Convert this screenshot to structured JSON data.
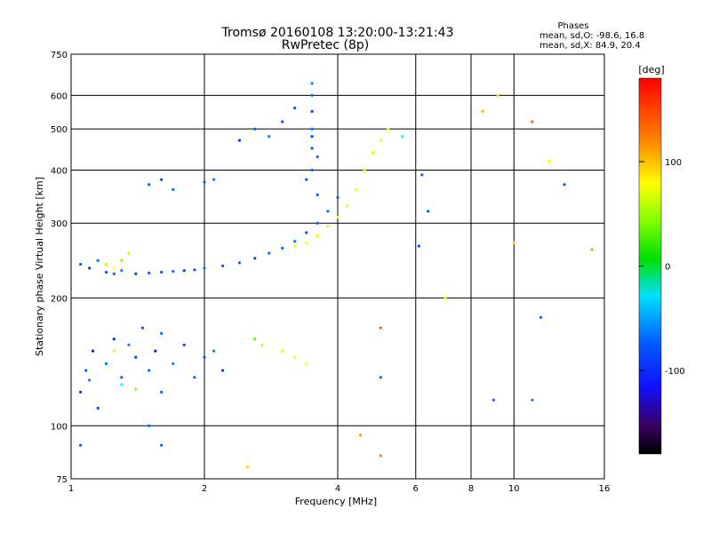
{
  "chart_data": {
    "type": "scatter",
    "title": "Tromsø 20160108 13:20:00-13:21:43",
    "subtitle": "RwPretec (8p)",
    "xlabel": "Frequency [MHz]",
    "ylabel": "Stationary phase Virtual Height [km]",
    "x_scale": "log",
    "y_scale": "log",
    "xlim": [
      1,
      16
    ],
    "ylim": [
      75,
      750
    ],
    "x_ticks": [
      1,
      2,
      4,
      6,
      8,
      10,
      16
    ],
    "x_tick_labels": [
      "1",
      "2",
      "4",
      "6",
      "8",
      "10",
      "16"
    ],
    "y_ticks": [
      75,
      100,
      200,
      300,
      400,
      500,
      600,
      750
    ],
    "y_tick_labels": [
      "75",
      "100",
      "200",
      "300",
      "400",
      "500",
      "600",
      "750"
    ],
    "grid": true,
    "stats": {
      "heading": "Phases",
      "line_o": "mean, sd,O: -98.6, 16.8",
      "line_x": "mean, sd,X:  84.9, 20.4"
    },
    "colorbar": {
      "label": "[deg]",
      "range": [
        -180,
        180
      ],
      "ticks": [
        100,
        0,
        -100
      ],
      "tick_labels": [
        "100",
        "0",
        "-100"
      ]
    },
    "series": [
      {
        "values_desc": "",
        "points": [
          [
            1.05,
            120,
            -120
          ],
          [
            1.08,
            135,
            -110
          ],
          [
            1.12,
            150,
            -130
          ],
          [
            1.15,
            110,
            -115
          ],
          [
            1.2,
            140,
            -105
          ],
          [
            1.25,
            160,
            -125
          ],
          [
            1.3,
            130,
            -110
          ],
          [
            1.35,
            155,
            -100
          ],
          [
            1.4,
            145,
            -120
          ],
          [
            1.45,
            170,
            -115
          ],
          [
            1.5,
            135,
            -105
          ],
          [
            1.55,
            150,
            -130
          ],
          [
            1.6,
            165,
            -110
          ],
          [
            1.7,
            140,
            -100
          ],
          [
            1.8,
            155,
            -120
          ],
          [
            1.9,
            130,
            -115
          ],
          [
            2.0,
            145,
            -110
          ],
          [
            2.1,
            150,
            -100
          ],
          [
            2.2,
            135,
            -120
          ],
          [
            1.1,
            128,
            -95
          ],
          [
            1.3,
            125,
            -60
          ],
          [
            1.4,
            122,
            60
          ],
          [
            1.25,
            150,
            90
          ],
          [
            1.6,
            120,
            -110
          ],
          [
            1.05,
            240,
            -110
          ],
          [
            1.1,
            235,
            -120
          ],
          [
            1.15,
            245,
            -105
          ],
          [
            1.2,
            230,
            -115
          ],
          [
            1.25,
            228,
            -110
          ],
          [
            1.3,
            232,
            -100
          ],
          [
            1.4,
            228,
            -120
          ],
          [
            1.5,
            229,
            -115
          ],
          [
            1.6,
            230,
            -110
          ],
          [
            1.7,
            231,
            -105
          ],
          [
            1.8,
            232,
            -120
          ],
          [
            1.9,
            233,
            -110
          ],
          [
            2.0,
            235,
            -100
          ],
          [
            2.2,
            238,
            -115
          ],
          [
            2.4,
            242,
            -110
          ],
          [
            2.6,
            248,
            -120
          ],
          [
            2.8,
            255,
            -105
          ],
          [
            3.0,
            262,
            -110
          ],
          [
            3.2,
            272,
            -100
          ],
          [
            3.4,
            285,
            -115
          ],
          [
            3.6,
            300,
            -110
          ],
          [
            3.8,
            320,
            -105
          ],
          [
            4.0,
            345,
            -110
          ],
          [
            1.2,
            240,
            80
          ],
          [
            1.3,
            245,
            60
          ],
          [
            1.35,
            255,
            90
          ],
          [
            1.25,
            235,
            100
          ],
          [
            3.2,
            265,
            95
          ],
          [
            3.4,
            270,
            100
          ],
          [
            3.6,
            280,
            90
          ],
          [
            3.8,
            295,
            85
          ],
          [
            4.0,
            310,
            95
          ],
          [
            4.2,
            330,
            90
          ],
          [
            4.4,
            360,
            100
          ],
          [
            4.6,
            400,
            85
          ],
          [
            4.8,
            440,
            90
          ],
          [
            5.0,
            470,
            100
          ],
          [
            5.2,
            500,
            95
          ],
          [
            3.5,
            400,
            -110
          ],
          [
            3.5,
            450,
            -115
          ],
          [
            3.5,
            500,
            -105
          ],
          [
            3.5,
            550,
            -120
          ],
          [
            3.5,
            600,
            -110
          ],
          [
            3.5,
            640,
            -100
          ],
          [
            3.6,
            350,
            -110
          ],
          [
            3.4,
            380,
            -115
          ],
          [
            3.6,
            430,
            -105
          ],
          [
            3.5,
            480,
            -120
          ],
          [
            2.6,
            500,
            -110
          ],
          [
            2.8,
            480,
            -100
          ],
          [
            3.0,
            520,
            -115
          ],
          [
            2.4,
            470,
            -120
          ],
          [
            3.2,
            560,
            -110
          ],
          [
            1.5,
            370,
            -110
          ],
          [
            1.6,
            380,
            -115
          ],
          [
            1.7,
            360,
            -105
          ],
          [
            2.0,
            375,
            -110
          ],
          [
            2.1,
            380,
            -100
          ],
          [
            2.7,
            155,
            80
          ],
          [
            3.0,
            150,
            90
          ],
          [
            3.2,
            145,
            95
          ],
          [
            3.4,
            140,
            100
          ],
          [
            2.6,
            160,
            40
          ],
          [
            5.6,
            480,
            -60
          ],
          [
            6.4,
            320,
            -110
          ],
          [
            7.0,
            200,
            95
          ],
          [
            8.5,
            550,
            120
          ],
          [
            9.2,
            600,
            110
          ],
          [
            11.0,
            520,
            150
          ],
          [
            12.0,
            420,
            100
          ],
          [
            13.0,
            370,
            -110
          ],
          [
            10.0,
            270,
            110
          ],
          [
            15.0,
            260,
            130
          ],
          [
            11.5,
            180,
            -110
          ],
          [
            11.0,
            115,
            -100
          ],
          [
            6.1,
            265,
            -120
          ],
          [
            9.0,
            115,
            -110
          ],
          [
            5.0,
            130,
            -110
          ],
          [
            4.5,
            95,
            130
          ],
          [
            5.0,
            85,
            140
          ],
          [
            2.5,
            80,
            110
          ],
          [
            1.05,
            90,
            -110
          ],
          [
            1.5,
            100,
            -110
          ],
          [
            1.6,
            90,
            -110
          ],
          [
            5.0,
            170,
            150
          ],
          [
            6.2,
            390,
            -110
          ]
        ]
      }
    ]
  }
}
